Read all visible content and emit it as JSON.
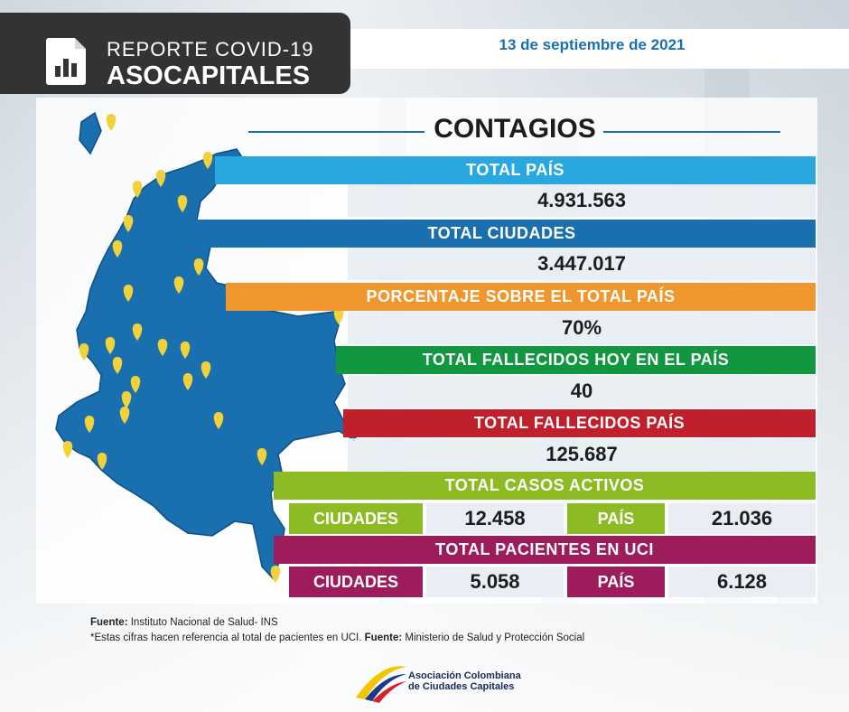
{
  "header": {
    "line1": "REPORTE COVID-19",
    "line2": "ASOCAPITALES",
    "date": "13 de septiembre de 2021"
  },
  "title": "CONTAGIOS",
  "rows": {
    "total_pais": {
      "label": "TOTAL PAÍS",
      "value": "4.931.563",
      "color": "#29a8e0"
    },
    "total_ciudades": {
      "label": "TOTAL CIUDADES",
      "value": "3.447.017",
      "color": "#1a6fae"
    },
    "porcentaje": {
      "label": "PORCENTAJE SOBRE EL TOTAL PAÍS",
      "value": "70%",
      "color": "#f0962e"
    },
    "fallecidos_hoy": {
      "label": "TOTAL FALLECIDOS HOY EN EL PAÍS",
      "value": "40",
      "color": "#11973f"
    },
    "fallecidos_pais": {
      "label": "TOTAL FALLECIDOS PAÍS",
      "value": "125.687",
      "color": "#c01f2c"
    },
    "casos_activos": {
      "label": "TOTAL CASOS ACTIVOS",
      "color": "#8dbb24",
      "ciudades_label": "CIUDADES",
      "ciudades_value": "12.458",
      "pais_label": "PAÍS",
      "pais_value": "21.036"
    },
    "uci": {
      "label": "TOTAL PACIENTES EN UCI",
      "color": "#9c1c5c",
      "ciudades_label": "CIUDADES",
      "ciudades_value": "5.058",
      "pais_label": "PAÍS",
      "pais_value": "6.128"
    }
  },
  "footer": {
    "fuente1_label": "Fuente:",
    "fuente1_text": " Instituto Nacional de Salud- INS",
    "note_text": "*Estas cifras hacen referencia al total de pacientes en UCI. ",
    "fuente2_label": "Fuente:",
    "fuente2_text": " Ministerio de Salud y Protección Social"
  },
  "logo": {
    "line1": "Asociación Colombiana",
    "line2": "de Ciudades Capitales"
  },
  "colors": {
    "map_fill": "#1a6fae",
    "pin": "#f2d23a",
    "accent": "#1a6fae"
  }
}
